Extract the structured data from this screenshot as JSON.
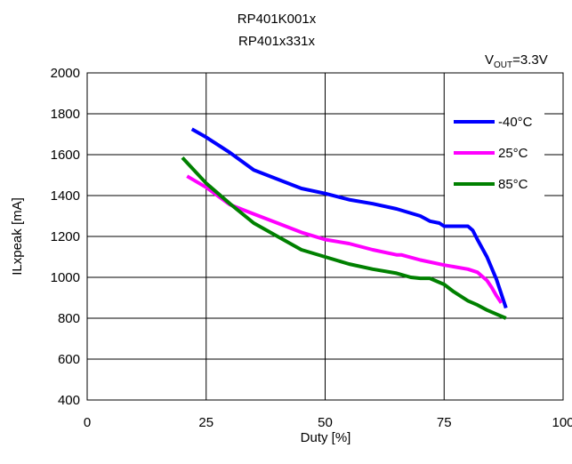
{
  "chart_data": {
    "type": "line",
    "title": "RP401K001x",
    "subtitle": "RP401x331x",
    "annotation": {
      "prefix": "V",
      "subscript": "OUT",
      "suffix": "=3.3V"
    },
    "xlabel": "Duty [%]",
    "ylabel": "ILxpeak [mA]",
    "xlim": [
      0,
      100
    ],
    "ylim": [
      400,
      2000
    ],
    "xticks": [
      0,
      25,
      50,
      75,
      100
    ],
    "yticks": [
      400,
      600,
      800,
      1000,
      1200,
      1400,
      1600,
      1800,
      2000
    ],
    "grid": true,
    "legend_position": "top-right inside",
    "series": [
      {
        "name": "-40°C",
        "color": "#0000ff",
        "x": [
          22,
          25,
          30,
          35,
          40,
          45,
          50,
          55,
          60,
          65,
          70,
          72,
          74,
          75,
          76,
          78,
          80,
          81,
          82,
          84,
          86,
          88
        ],
        "y": [
          1725,
          1685,
          1610,
          1525,
          1480,
          1435,
          1410,
          1380,
          1360,
          1335,
          1300,
          1275,
          1265,
          1250,
          1250,
          1250,
          1250,
          1230,
          1185,
          1100,
          990,
          850
        ]
      },
      {
        "name": "25°C",
        "color": "#ff00ff",
        "x": [
          21,
          25,
          30,
          35,
          40,
          45,
          50,
          55,
          60,
          65,
          66,
          70,
          75,
          80,
          82,
          83,
          84,
          85,
          86,
          87
        ],
        "y": [
          1495,
          1440,
          1355,
          1310,
          1265,
          1220,
          1185,
          1165,
          1135,
          1110,
          1110,
          1085,
          1060,
          1040,
          1025,
          1005,
          985,
          950,
          910,
          875
        ]
      },
      {
        "name": "85°C",
        "color": "#008000",
        "x": [
          20,
          25,
          30,
          35,
          40,
          45,
          50,
          55,
          60,
          65,
          68,
          70,
          72,
          75,
          77,
          80,
          82,
          84,
          86,
          88
        ],
        "y": [
          1585,
          1460,
          1360,
          1265,
          1200,
          1135,
          1100,
          1065,
          1040,
          1020,
          1000,
          995,
          995,
          965,
          930,
          885,
          865,
          840,
          820,
          800
        ]
      }
    ]
  }
}
